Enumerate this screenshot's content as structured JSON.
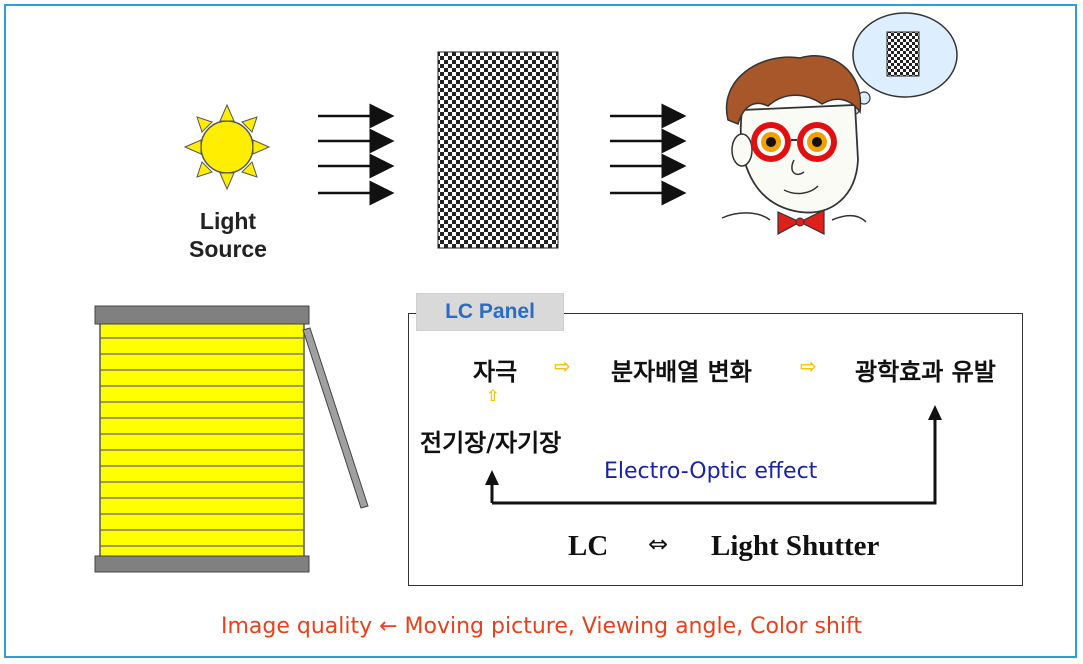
{
  "light_source_label": [
    "Light",
    "Source"
  ],
  "panel": {
    "tab_label": "LC Panel",
    "flow": {
      "stimulus": "자극",
      "arrow_right_1": "⇨",
      "molecular_change": "분자배열 변화",
      "arrow_right_2": "⇨",
      "optical_effect": "광학효과 유발",
      "arrow_up": "⇧",
      "field": "전기장/자기장"
    },
    "electro_optic_label": "Electro-Optic effect",
    "shutter_relation": {
      "left": "LC",
      "symbol": "⇔",
      "right": "Light Shutter"
    }
  },
  "footer_note": "Image quality ← Moving picture, Viewing angle, Color shift",
  "colors": {
    "frame": "#2aa0d8",
    "sun": "#ffee00",
    "blind_slats": "#ffff00",
    "footer_text": "#e8401a",
    "electro_optic_text": "#1a22a8",
    "panel_tab_text": "#2b6cc4"
  }
}
